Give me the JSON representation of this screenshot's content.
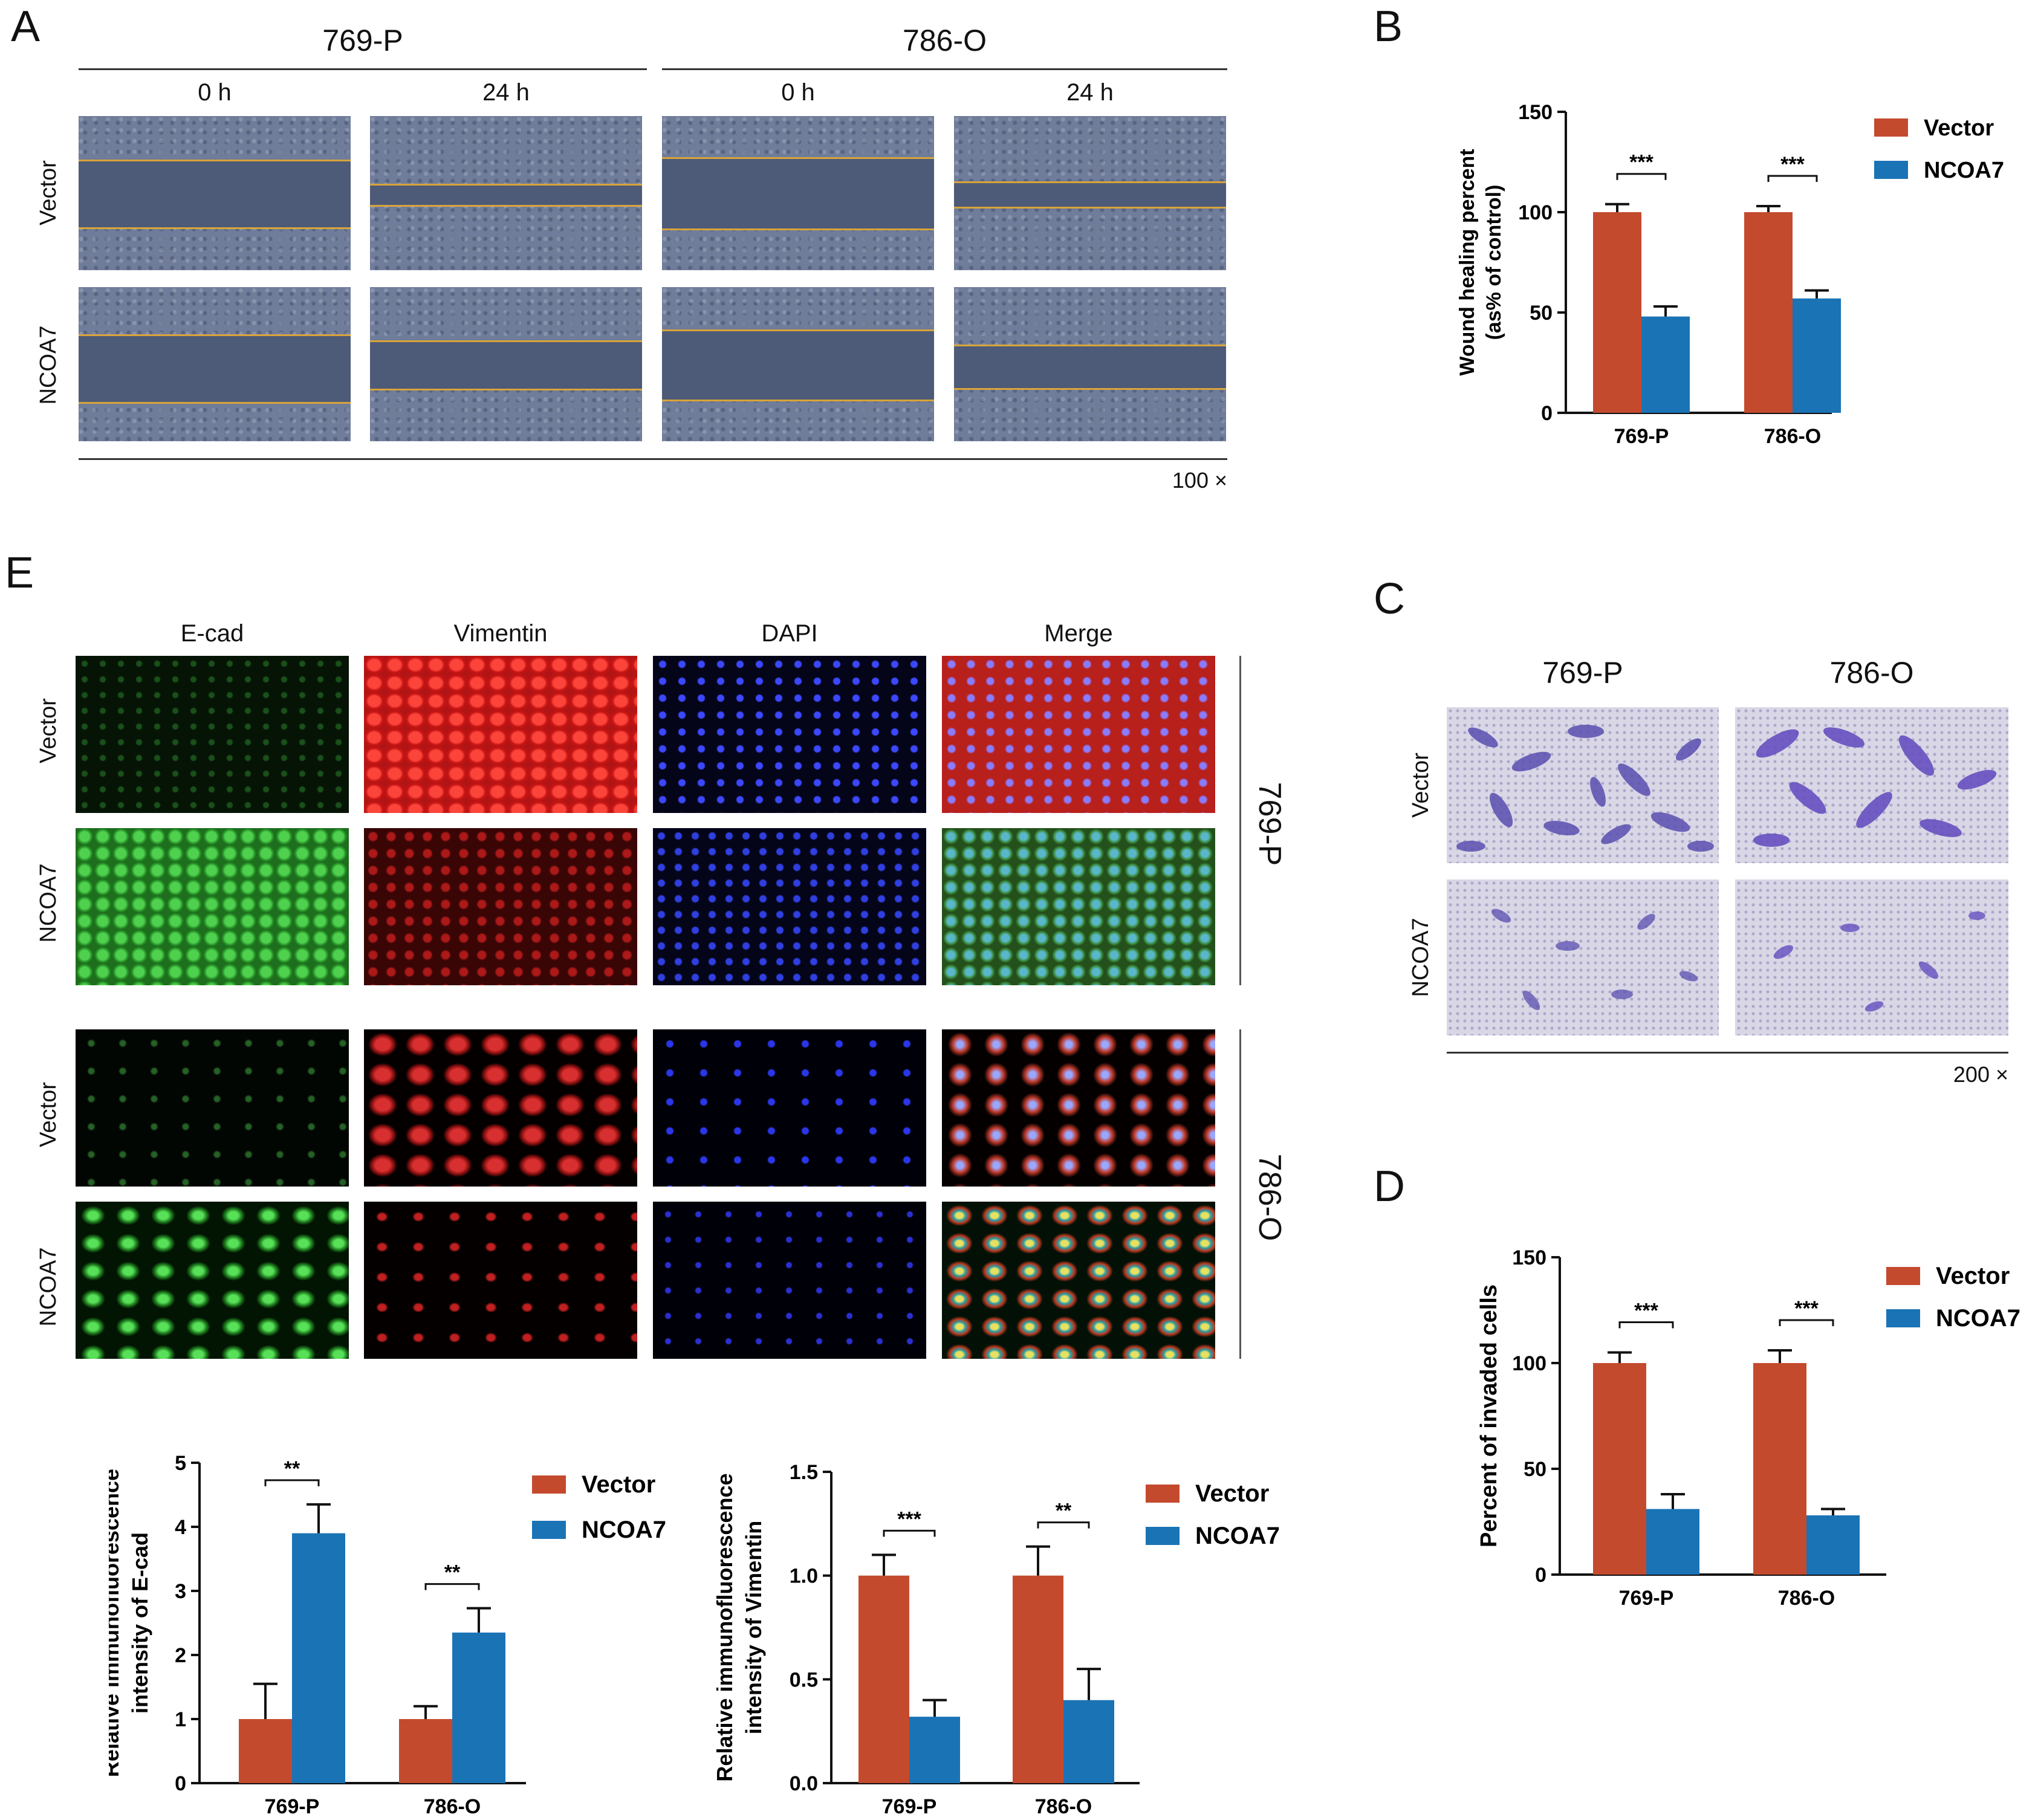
{
  "panels": {
    "A": "A",
    "B": "B",
    "C": "C",
    "D": "D",
    "E": "E"
  },
  "panelA": {
    "groups": [
      "769-P",
      "786-O"
    ],
    "times": [
      "0 h",
      "24 h",
      "0 h",
      "24 h"
    ],
    "rows": [
      "Vector",
      "NCOA7"
    ],
    "magnification": "100 ×"
  },
  "panelC": {
    "groups": [
      "769-P",
      "786-O"
    ],
    "rows": [
      "Vector",
      "NCOA7"
    ],
    "magnification": "200 ×"
  },
  "panelE": {
    "channels": [
      "E-cad",
      "Vimentin",
      "DAPI",
      "Merge"
    ],
    "rows": [
      "Vector",
      "NCOA7",
      "Vector",
      "NCOA7"
    ],
    "cell_lines": [
      "769-P",
      "786-O"
    ]
  },
  "colors": {
    "vector": "#c44a2e",
    "ncoa7": "#1a73b5"
  },
  "chart_data": [
    {
      "id": "B",
      "type": "bar",
      "categories": [
        "769-P",
        "786-O"
      ],
      "series": [
        {
          "name": "Vector",
          "values": [
            100,
            100
          ],
          "errors": [
            4,
            3
          ]
        },
        {
          "name": "NCOA7",
          "values": [
            48,
            57
          ],
          "errors": [
            5,
            4
          ]
        }
      ],
      "ylabel": "Wound healing percent",
      "ylabel2": "(as% of control)",
      "ylim": [
        0,
        150
      ],
      "yticks": [
        "0",
        "50",
        "100",
        "150"
      ],
      "significance": [
        "***",
        "***"
      ],
      "legend": "top-right"
    },
    {
      "id": "D",
      "type": "bar",
      "categories": [
        "769-P",
        "786-O"
      ],
      "series": [
        {
          "name": "Vector",
          "values": [
            100,
            100
          ],
          "errors": [
            5,
            6
          ]
        },
        {
          "name": "NCOA7",
          "values": [
            31,
            28
          ],
          "errors": [
            7,
            3
          ]
        }
      ],
      "ylabel": "Percent of invaded cells",
      "ylim": [
        0,
        150
      ],
      "yticks": [
        "0",
        "50",
        "100",
        "150"
      ],
      "significance": [
        "***",
        "***"
      ],
      "legend": "top-right"
    },
    {
      "id": "E1",
      "type": "bar",
      "categories": [
        "769-P",
        "786-O"
      ],
      "series": [
        {
          "name": "Vector",
          "values": [
            1.0,
            1.0
          ],
          "errors": [
            0.55,
            0.2
          ]
        },
        {
          "name": "NCOA7",
          "values": [
            3.9,
            2.35
          ],
          "errors": [
            0.45,
            0.38
          ]
        }
      ],
      "ylabel": "Relative immunofluorescence",
      "ylabel2": "intensity of E-cad",
      "ylim": [
        0,
        5
      ],
      "yticks": [
        "0",
        "1",
        "2",
        "3",
        "4",
        "5"
      ],
      "significance": [
        "**",
        "**"
      ],
      "legend": "top-right"
    },
    {
      "id": "E2",
      "type": "bar",
      "categories": [
        "769-P",
        "786-O"
      ],
      "series": [
        {
          "name": "Vector",
          "values": [
            1.0,
            1.0
          ],
          "errors": [
            0.1,
            0.14
          ]
        },
        {
          "name": "NCOA7",
          "values": [
            0.32,
            0.4
          ],
          "errors": [
            0.08,
            0.15
          ]
        }
      ],
      "ylabel": "Relative immunofluorescence",
      "ylabel2": "intensity of Vimentin",
      "ylim": [
        0,
        1.5
      ],
      "yticks": [
        "0.0",
        "0.5",
        "1.0",
        "1.5"
      ],
      "significance": [
        "***",
        "**"
      ],
      "legend": "top-right"
    }
  ]
}
